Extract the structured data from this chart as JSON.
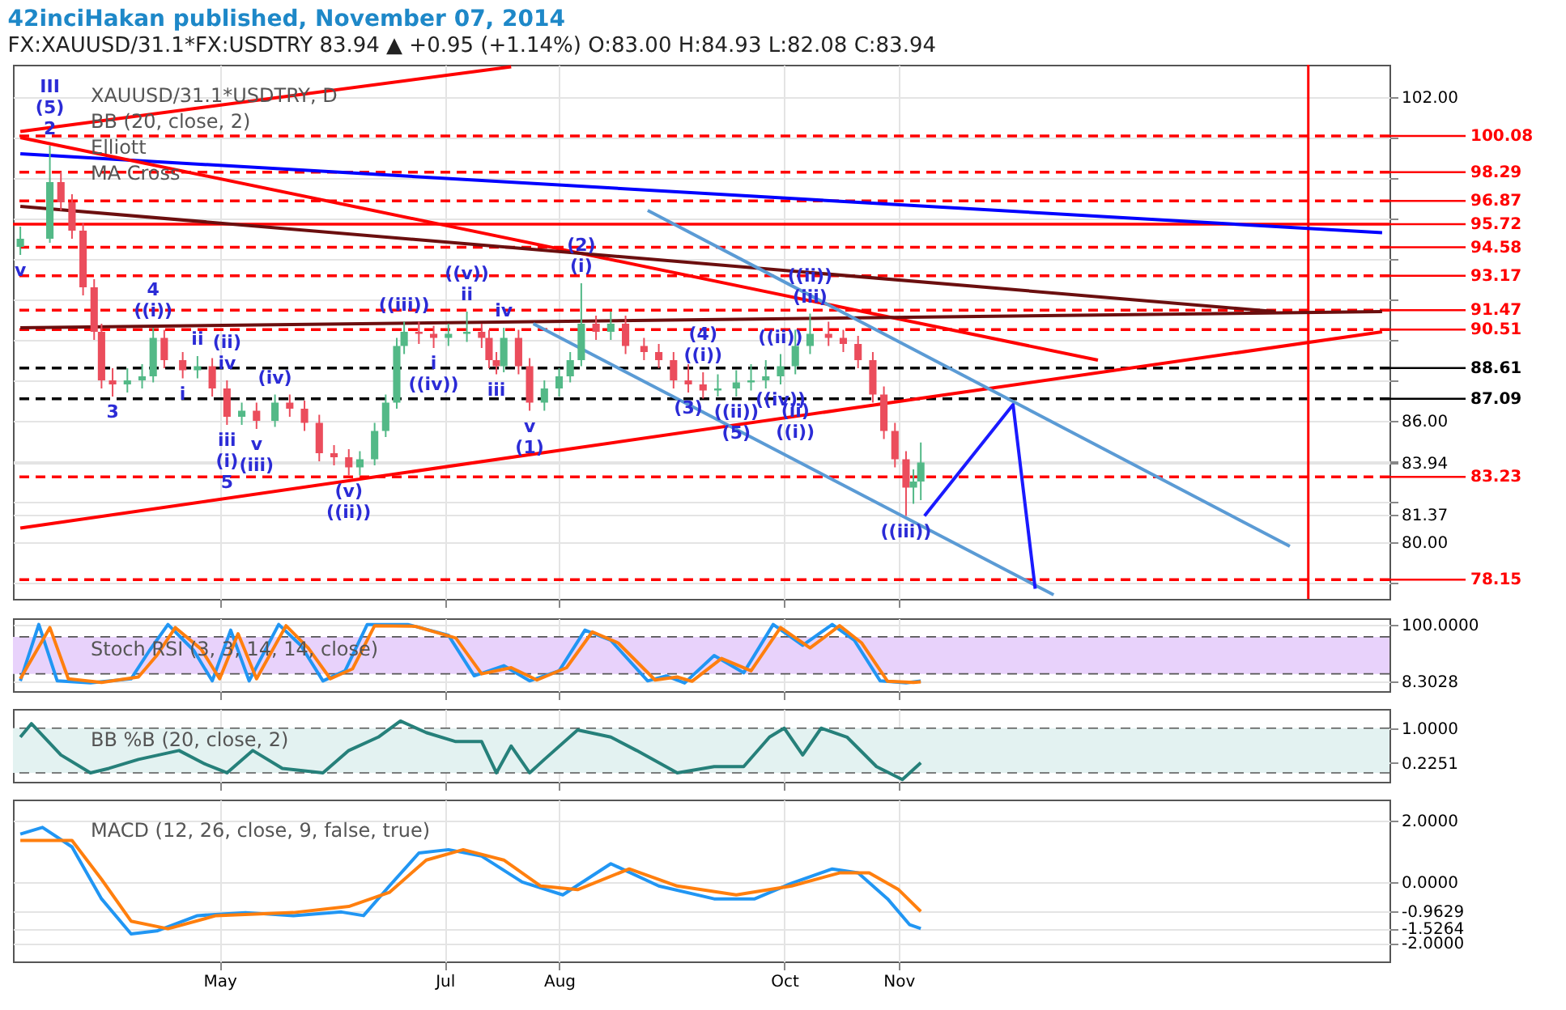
{
  "chart_data": [
    {
      "type": "candlestick",
      "title": "42inciHakan published, November 07, 2014",
      "subtitle": "FX:XAUUSD/31.1*FX:USDTRY  83.94 ▲ +0.95 (+1.14%)  O:83.00  H:84.93  L:82.08  C:83.94",
      "x": [
        "2014-03-08",
        "2014-03-16",
        "2014-03-19",
        "2014-03-22",
        "2014-03-25",
        "2014-03-28",
        "2014-03-30",
        "2014-04-02",
        "2014-04-06",
        "2014-04-10",
        "2014-04-13",
        "2014-04-16",
        "2014-04-21",
        "2014-04-25",
        "2014-04-29",
        "2014-05-03",
        "2014-05-07",
        "2014-05-11",
        "2014-05-16",
        "2014-05-20",
        "2014-05-24",
        "2014-05-28",
        "2014-06-01",
        "2014-06-05",
        "2014-06-08",
        "2014-06-12",
        "2014-06-15",
        "2014-06-18",
        "2014-06-20",
        "2014-06-24",
        "2014-06-28",
        "2014-07-02",
        "2014-07-07",
        "2014-07-11",
        "2014-07-13",
        "2014-07-15",
        "2014-07-17",
        "2014-07-21",
        "2014-07-24",
        "2014-07-28",
        "2014-08-01",
        "2014-08-04",
        "2014-08-07",
        "2014-08-11",
        "2014-08-15",
        "2014-08-19",
        "2014-08-24",
        "2014-08-28",
        "2014-09-01",
        "2014-09-05",
        "2014-09-09",
        "2014-09-13",
        "2014-09-18",
        "2014-09-22",
        "2014-09-26",
        "2014-09-30",
        "2014-10-04",
        "2014-10-08",
        "2014-10-13",
        "2014-10-17",
        "2014-10-21",
        "2014-10-25",
        "2014-10-28",
        "2014-10-31",
        "2014-11-03",
        "2014-11-05",
        "2014-11-07"
      ],
      "ohlc": [
        [
          94.6,
          95.6,
          94.2,
          95.0
        ],
        [
          95.0,
          99.6,
          94.8,
          97.8
        ],
        [
          97.8,
          98.3,
          96.4,
          96.8
        ],
        [
          96.8,
          97.2,
          95.0,
          95.4
        ],
        [
          95.4,
          95.8,
          92.2,
          92.6
        ],
        [
          92.6,
          93.0,
          90.0,
          90.4
        ],
        [
          90.4,
          90.8,
          87.6,
          88.0
        ],
        [
          88.0,
          88.6,
          87.2,
          87.8
        ],
        [
          87.8,
          88.6,
          87.4,
          88.0
        ],
        [
          88.0,
          88.8,
          87.6,
          88.2
        ],
        [
          88.2,
          90.6,
          87.9,
          90.1
        ],
        [
          90.1,
          90.5,
          88.6,
          89.0
        ],
        [
          89.0,
          89.4,
          88.1,
          88.5
        ],
        [
          88.5,
          89.2,
          88.1,
          88.7
        ],
        [
          88.7,
          89.1,
          87.2,
          87.6
        ],
        [
          87.6,
          88.0,
          85.8,
          86.2
        ],
        [
          86.2,
          86.9,
          85.8,
          86.5
        ],
        [
          86.5,
          86.9,
          85.6,
          86.0
        ],
        [
          86.0,
          87.3,
          85.7,
          86.9
        ],
        [
          86.9,
          87.3,
          86.2,
          86.6
        ],
        [
          86.6,
          87.0,
          85.5,
          85.9
        ],
        [
          85.9,
          86.3,
          84.0,
          84.4
        ],
        [
          84.4,
          84.8,
          83.8,
          84.2
        ],
        [
          84.2,
          84.6,
          83.3,
          83.7
        ],
        [
          83.7,
          84.5,
          83.3,
          84.1
        ],
        [
          84.1,
          85.9,
          83.8,
          85.5
        ],
        [
          85.5,
          87.3,
          85.2,
          86.9
        ],
        [
          86.9,
          90.1,
          86.6,
          89.7
        ],
        [
          89.7,
          90.9,
          89.3,
          90.4
        ],
        [
          90.4,
          90.9,
          89.8,
          90.3
        ],
        [
          90.3,
          90.7,
          89.6,
          90.1
        ],
        [
          90.1,
          90.8,
          89.7,
          90.3
        ],
        [
          90.3,
          91.4,
          89.9,
          90.4
        ],
        [
          90.4,
          90.8,
          89.6,
          90.1
        ],
        [
          90.1,
          90.5,
          88.6,
          89.0
        ],
        [
          89.0,
          89.4,
          88.3,
          88.7
        ],
        [
          88.7,
          90.6,
          88.4,
          90.1
        ],
        [
          90.1,
          90.5,
          88.3,
          88.7
        ],
        [
          88.7,
          89.1,
          86.5,
          86.9
        ],
        [
          86.9,
          88.0,
          86.5,
          87.6
        ],
        [
          87.6,
          88.6,
          87.2,
          88.2
        ],
        [
          88.2,
          89.4,
          87.9,
          89.0
        ],
        [
          89.0,
          92.8,
          88.7,
          90.8
        ],
        [
          90.8,
          91.2,
          90.0,
          90.4
        ],
        [
          90.4,
          91.4,
          90.0,
          90.8
        ],
        [
          90.8,
          91.2,
          89.3,
          89.7
        ],
        [
          89.7,
          90.1,
          89.0,
          89.4
        ],
        [
          89.4,
          89.8,
          88.6,
          89.0
        ],
        [
          89.0,
          89.4,
          87.6,
          88.0
        ],
        [
          88.0,
          88.8,
          87.4,
          87.8
        ],
        [
          87.8,
          88.4,
          87.1,
          87.5
        ],
        [
          87.5,
          88.3,
          87.2,
          87.6
        ],
        [
          87.6,
          88.5,
          87.2,
          87.9
        ],
        [
          87.9,
          88.8,
          87.5,
          88.0
        ],
        [
          88.0,
          89.0,
          87.6,
          88.2
        ],
        [
          88.2,
          89.3,
          87.8,
          88.7
        ],
        [
          88.7,
          90.5,
          88.3,
          89.7
        ],
        [
          89.7,
          91.3,
          89.3,
          90.3
        ],
        [
          90.3,
          90.9,
          89.7,
          90.1
        ],
        [
          90.1,
          90.5,
          89.4,
          89.8
        ],
        [
          89.8,
          90.2,
          88.6,
          89.0
        ],
        [
          89.0,
          89.4,
          86.9,
          87.3
        ],
        [
          87.3,
          87.7,
          85.1,
          85.5
        ],
        [
          85.5,
          85.9,
          83.7,
          84.1
        ],
        [
          84.1,
          84.5,
          81.3,
          82.7
        ],
        [
          82.7,
          83.6,
          81.9,
          83.0
        ],
        [
          83.0,
          84.93,
          82.08,
          83.94
        ]
      ],
      "colors": [
        "#53b987",
        "#53b987",
        "#eb4d5c",
        "#eb4d5c",
        "#eb4d5c",
        "#eb4d5c",
        "#eb4d5c",
        "#eb4d5c",
        "#53b987",
        "#53b987",
        "#53b987",
        "#eb4d5c",
        "#eb4d5c",
        "#53b987",
        "#eb4d5c",
        "#eb4d5c",
        "#53b987",
        "#eb4d5c",
        "#53b987",
        "#eb4d5c",
        "#eb4d5c",
        "#eb4d5c",
        "#eb4d5c",
        "#eb4d5c",
        "#53b987",
        "#53b987",
        "#53b987",
        "#53b987",
        "#53b987",
        "#eb4d5c",
        "#eb4d5c",
        "#53b987",
        "#53b987",
        "#eb4d5c",
        "#eb4d5c",
        "#eb4d5c",
        "#53b987",
        "#eb4d5c",
        "#eb4d5c",
        "#53b987",
        "#53b987",
        "#53b987",
        "#53b987",
        "#eb4d5c",
        "#53b987",
        "#eb4d5c",
        "#eb4d5c",
        "#eb4d5c",
        "#eb4d5c",
        "#eb4d5c",
        "#eb4d5c",
        "#53b987",
        "#53b987",
        "#53b987",
        "#53b987",
        "#53b987",
        "#53b987",
        "#53b987",
        "#eb4d5c",
        "#eb4d5c",
        "#eb4d5c",
        "#eb4d5c",
        "#eb4d5c",
        "#eb4d5c",
        "#eb4d5c",
        "#53b987",
        "#53b987"
      ],
      "series": [
        {
          "type": "line",
          "color": "#ff0000",
          "x": [
            "2014-03-08",
            "2014-07-19"
          ],
          "values": [
            100.3,
            103.5
          ]
        },
        {
          "type": "line",
          "color": "#0000ff",
          "x": [
            "2014-03-08",
            "2015-03-12"
          ],
          "values": [
            99.2,
            95.3
          ]
        },
        {
          "type": "line",
          "color": "#ff0000",
          "x": [
            "2014-03-08",
            "2014-12-25"
          ],
          "values": [
            100.0,
            89.0
          ]
        },
        {
          "type": "line",
          "color": "#6b0f0f",
          "x": [
            "2014-03-08",
            "2015-02-11"
          ],
          "values": [
            96.6,
            91.4
          ]
        },
        {
          "type": "line",
          "color": "#6b0f0f",
          "x": [
            "2014-03-08",
            "2015-03-12"
          ],
          "values": [
            90.6,
            91.4
          ]
        },
        {
          "type": "line",
          "color": "#ff0000",
          "x": [
            "2014-03-08",
            "2015-03-12"
          ],
          "values": [
            80.7,
            90.4
          ]
        },
        {
          "type": "line",
          "color": "#5b9bd5",
          "x": [
            "2014-08-25",
            "2015-02-15"
          ],
          "values": [
            96.4,
            79.8
          ]
        },
        {
          "type": "line",
          "color": "#5b9bd5",
          "x": [
            "2014-07-25",
            "2014-12-13"
          ],
          "values": [
            90.8,
            77.4
          ]
        },
        {
          "type": "line",
          "color": "#1a1aff",
          "x": [
            "2014-11-08",
            "2014-12-02",
            "2014-12-08"
          ],
          "values": [
            81.3,
            86.8,
            77.7
          ]
        }
      ],
      "ref_lines": [
        {
          "axis": "y",
          "value": 100.08,
          "label": "100.08",
          "color": "#ff0000",
          "line_style": "dashed"
        },
        {
          "axis": "y",
          "value": 98.29,
          "label": "98.29",
          "color": "#ff0000",
          "line_style": "dashed"
        },
        {
          "axis": "y",
          "value": 96.87,
          "label": "96.87",
          "color": "#ff0000",
          "line_style": "dashed"
        },
        {
          "axis": "y",
          "value": 95.72,
          "label": "95.72",
          "color": "#ff0000",
          "line_style": "solid"
        },
        {
          "axis": "y",
          "value": 94.58,
          "label": "94.58",
          "color": "#ff0000",
          "line_style": "dashed"
        },
        {
          "axis": "y",
          "value": 93.17,
          "label": "93.17",
          "color": "#ff0000",
          "line_style": "dashed"
        },
        {
          "axis": "y",
          "value": 91.47,
          "label": "91.47",
          "color": "#ff0000",
          "line_style": "dashed"
        },
        {
          "axis": "y",
          "value": 90.51,
          "label": "90.51",
          "color": "#ff0000",
          "line_style": "dashed"
        },
        {
          "axis": "y",
          "value": 88.61,
          "label": "88.61",
          "color": "#000000",
          "line_style": "dashed"
        },
        {
          "axis": "y",
          "value": 87.09,
          "label": "87.09",
          "color": "#000000",
          "line_style": "dashed"
        },
        {
          "axis": "y",
          "value": 83.23,
          "label": "83.23",
          "color": "#ff0000",
          "line_style": "dashed"
        },
        {
          "axis": "y",
          "value": 78.15,
          "label": "78.15",
          "color": "#ff0000",
          "line_style": "dashed"
        },
        {
          "axis": "x",
          "value": "2015-02-20",
          "label": null,
          "color": "#ff0000",
          "line_style": "solid"
        }
      ],
      "annotations": [
        "XAUUSD/31.1*USDTRY, D",
        "BB (20, close, 2)",
        "Elliott",
        "MA Cross",
        {
          "text": "2",
          "x": "2014-03-16",
          "y": 99.6
        },
        {
          "text": "(5)",
          "x": "2014-03-16",
          "y": 99.6
        },
        {
          "text": "III",
          "x": "2014-03-16",
          "y": 99.6
        },
        {
          "text": "v",
          "x": "2014-03-08",
          "y": 94.2
        },
        {
          "text": "((i))",
          "x": "2014-04-13",
          "y": 90.6
        },
        {
          "text": "4",
          "x": "2014-04-13",
          "y": 90.6
        },
        {
          "text": "ii",
          "x": "2014-04-25",
          "y": 89.2
        },
        {
          "text": "iv",
          "x": "2014-05-03",
          "y": 88.0
        },
        {
          "text": "(ii)",
          "x": "2014-05-03",
          "y": 88.0
        },
        {
          "text": "(iv)",
          "x": "2014-05-16",
          "y": 87.3
        },
        {
          "text": "3",
          "x": "2014-04-02",
          "y": 87.2
        },
        {
          "text": "i",
          "x": "2014-04-21",
          "y": 88.1
        },
        {
          "text": "iii",
          "x": "2014-05-03",
          "y": 85.8
        },
        {
          "text": "(i)",
          "x": "2014-05-03",
          "y": 85.8
        },
        {
          "text": "5",
          "x": "2014-05-03",
          "y": 85.8
        },
        {
          "text": "v",
          "x": "2014-05-11",
          "y": 85.6
        },
        {
          "text": "(iii)",
          "x": "2014-05-11",
          "y": 85.6
        },
        {
          "text": "(v)",
          "x": "2014-06-05",
          "y": 83.3
        },
        {
          "text": "((ii))",
          "x": "2014-06-05",
          "y": 83.3
        },
        {
          "text": "((iii))",
          "x": "2014-06-20",
          "y": 90.9
        },
        {
          "text": "ii",
          "x": "2014-07-07",
          "y": 91.4
        },
        {
          "text": "((v))",
          "x": "2014-07-07",
          "y": 91.4
        },
        {
          "text": "iv",
          "x": "2014-07-17",
          "y": 90.6
        },
        {
          "text": "i",
          "x": "2014-06-28",
          "y": 89.6
        },
        {
          "text": "((iv))",
          "x": "2014-06-28",
          "y": 89.6
        },
        {
          "text": "iii",
          "x": "2014-07-15",
          "y": 88.3
        },
        {
          "text": "v",
          "x": "2014-07-24",
          "y": 86.5
        },
        {
          "text": "(1)",
          "x": "2014-07-24",
          "y": 86.5
        },
        {
          "text": "(i)",
          "x": "2014-08-07",
          "y": 92.8
        },
        {
          "text": "(2)",
          "x": "2014-08-07",
          "y": 92.8
        },
        {
          "text": "((i))",
          "x": "2014-09-09",
          "y": 88.4
        },
        {
          "text": "(4)",
          "x": "2014-09-09",
          "y": 88.4
        },
        {
          "text": "((ii))",
          "x": "2014-09-30",
          "y": 89.3
        },
        {
          "text": "((iv))",
          "x": "2014-09-30",
          "y": 87.8
        },
        {
          "text": "(iii)",
          "x": "2014-10-08",
          "y": 91.3
        },
        {
          "text": "((ii))",
          "x": "2014-10-08",
          "y": 91.3
        },
        {
          "text": "(3)",
          "x": "2014-09-05",
          "y": 87.4
        },
        {
          "text": "((ii))",
          "x": "2014-09-18",
          "y": 87.2
        },
        {
          "text": "(5)",
          "x": "2014-09-18",
          "y": 87.2
        },
        {
          "text": "(ii)",
          "x": "2014-10-04",
          "y": 88.3
        },
        {
          "text": "((i))",
          "x": "2014-10-04",
          "y": 88.3
        },
        {
          "text": "((iii))",
          "x": "2014-11-03",
          "y": 81.3
        }
      ],
      "xlim": [
        "2014-03-06",
        "2015-03-14"
      ],
      "xticks": [
        {
          "value": "2014-05-01",
          "label": null
        },
        {
          "value": "2014-07-01",
          "label": null
        },
        {
          "value": "2014-08-01",
          "label": null
        },
        {
          "value": "2014-10-01",
          "label": null
        },
        {
          "value": "2014-11-01",
          "label": null
        }
      ],
      "ylim": [
        77.2,
        103.6
      ],
      "yticks": [
        {
          "value": 78,
          "label": null
        },
        {
          "value": 80,
          "label": "80.00"
        },
        {
          "value": 81.37,
          "label": "81.37"
        },
        {
          "value": 82,
          "label": null
        },
        {
          "value": 83.94,
          "label": "83.94"
        },
        {
          "value": 84,
          "label": null
        },
        {
          "value": 86,
          "label": "86.00"
        },
        {
          "value": 88,
          "label": null
        },
        {
          "value": 90,
          "label": null
        },
        {
          "value": 92,
          "label": null
        },
        {
          "value": 94,
          "label": null
        },
        {
          "value": 96,
          "label": null
        },
        {
          "value": 98,
          "label": null
        },
        {
          "value": 100,
          "label": null
        },
        {
          "value": 102,
          "label": "102.00"
        }
      ],
      "tick_labels": "y",
      "grid": true,
      "marker": "none"
    },
    {
      "type": "line",
      "annotations": [
        "Stoch RSI (3, 3, 14, 14, close)"
      ],
      "series": [
        {
          "color": "#2196f3",
          "x": [
            "2014-03-08",
            "2014-03-13",
            "2014-03-18",
            "2014-03-27",
            "2014-04-07",
            "2014-04-12",
            "2014-04-17",
            "2014-04-24",
            "2014-04-29",
            "2014-05-04",
            "2014-05-09",
            "2014-05-17",
            "2014-05-23",
            "2014-05-29",
            "2014-06-04",
            "2014-06-10",
            "2014-06-21",
            "2014-07-02",
            "2014-07-09",
            "2014-07-17",
            "2014-07-24",
            "2014-08-01",
            "2014-08-08",
            "2014-08-15",
            "2014-08-25",
            "2014-08-30",
            "2014-09-04",
            "2014-09-12",
            "2014-09-20",
            "2014-09-28",
            "2014-10-06",
            "2014-10-14",
            "2014-10-20",
            "2014-10-27",
            "2014-11-03",
            "2014-11-07"
          ],
          "values": [
            8.6,
            100,
            8.6,
            5.3,
            11.9,
            57.9,
            100,
            57.9,
            8.6,
            90.8,
            8.6,
            100,
            66.1,
            8.6,
            25,
            100,
            100,
            82.6,
            16.8,
            33.2,
            8.6,
            25,
            90.8,
            74.3,
            8.6,
            16.8,
            5.3,
            49.7,
            21.7,
            100,
            66.1,
            100,
            74.3,
            8.6,
            5.3,
            8.3028
          ]
        },
        {
          "color": "#ff7f0e",
          "x": [
            "2014-03-08",
            "2014-03-16",
            "2014-03-21",
            "2014-03-30",
            "2014-04-09",
            "2014-04-14",
            "2014-04-19",
            "2014-04-26",
            "2014-05-01",
            "2014-05-06",
            "2014-05-11",
            "2014-05-19",
            "2014-05-25",
            "2014-05-31",
            "2014-06-06",
            "2014-06-12",
            "2014-06-23",
            "2014-07-04",
            "2014-07-11",
            "2014-07-19",
            "2014-07-26",
            "2014-08-03",
            "2014-08-10",
            "2014-08-17",
            "2014-08-27",
            "2014-09-02",
            "2014-09-06",
            "2014-09-14",
            "2014-09-22",
            "2014-09-30",
            "2014-10-08",
            "2014-10-16",
            "2014-10-22",
            "2014-10-29",
            "2014-11-05",
            "2014-11-07"
          ],
          "values": [
            12,
            95,
            12,
            6,
            15,
            50,
            95,
            60,
            12,
            85,
            12,
            98,
            62,
            12,
            28,
            98,
            97,
            78,
            20,
            30,
            10,
            30,
            88,
            70,
            10,
            15,
            8,
            45,
            25,
            95,
            62,
            98,
            70,
            8,
            6,
            7
          ]
        }
      ],
      "bands": [
        {
          "axis": "y",
          "from": 20,
          "to": 80,
          "color": "#e8d2fb"
        }
      ],
      "ref_lines": [
        {
          "axis": "y",
          "value": 20,
          "label": null,
          "color": "#555555",
          "line_style": "dashed"
        },
        {
          "axis": "y",
          "value": 80,
          "label": null,
          "color": "#555555",
          "line_style": "dashed"
        }
      ],
      "xlim": [
        "2014-03-06",
        "2015-03-14"
      ],
      "xticks": [
        {
          "value": "2014-05-01",
          "label": null
        },
        {
          "value": "2014-07-01",
          "label": null
        },
        {
          "value": "2014-08-01",
          "label": null
        },
        {
          "value": "2014-10-01",
          "label": null
        },
        {
          "value": "2014-11-01",
          "label": null
        }
      ],
      "ylim": [
        -8,
        110
      ],
      "yticks": [
        {
          "value": 8.3028,
          "label": "8.3028"
        },
        {
          "value": 100,
          "label": "100.0000"
        }
      ],
      "tick_labels": "y",
      "grid": true,
      "marker": "none"
    },
    {
      "type": "line",
      "annotations": [
        "BB %B (20, close, 2)"
      ],
      "series": [
        {
          "color": "#26807a",
          "x": [
            "2014-03-08",
            "2014-03-11",
            "2014-03-19",
            "2014-03-27",
            "2014-04-01",
            "2014-04-09",
            "2014-04-20",
            "2014-04-27",
            "2014-05-03",
            "2014-05-10",
            "2014-05-18",
            "2014-05-29",
            "2014-06-05",
            "2014-06-13",
            "2014-06-19",
            "2014-06-26",
            "2014-07-04",
            "2014-07-11",
            "2014-07-15",
            "2014-07-19",
            "2014-07-24",
            "2014-07-28",
            "2014-08-06",
            "2014-08-15",
            "2014-08-22",
            "2014-09-02",
            "2014-09-12",
            "2014-09-20",
            "2014-09-27",
            "2014-10-01",
            "2014-10-06",
            "2014-10-11",
            "2014-10-18",
            "2014-10-26",
            "2014-11-02",
            "2014-11-07"
          ],
          "values": [
            0.8,
            1.1,
            0.4,
            0.0,
            0.1,
            0.3,
            0.5,
            0.2,
            0.0,
            0.5,
            0.1,
            0.0,
            0.5,
            0.8,
            1.16,
            0.9,
            0.7,
            0.7,
            0.0,
            0.6,
            0.0,
            0.3,
            0.96,
            0.8,
            0.5,
            0.0,
            0.14,
            0.14,
            0.8,
            1.0,
            0.4,
            1.0,
            0.8,
            0.14,
            -0.15,
            0.2251
          ]
        }
      ],
      "bands": [
        {
          "axis": "y",
          "from": 0,
          "to": 1,
          "color": "#e3f2f1"
        }
      ],
      "ref_lines": [
        {
          "axis": "y",
          "value": 0,
          "label": null,
          "color": "#555555",
          "line_style": "dashed"
        },
        {
          "axis": "y",
          "value": 1,
          "label": null,
          "color": "#555555",
          "line_style": "dashed"
        }
      ],
      "xlim": [
        "2014-03-06",
        "2015-03-14"
      ],
      "xticks": [
        {
          "value": "2014-05-01",
          "label": null
        },
        {
          "value": "2014-07-01",
          "label": null
        },
        {
          "value": "2014-08-01",
          "label": null
        },
        {
          "value": "2014-10-01",
          "label": null
        },
        {
          "value": "2014-11-01",
          "label": null
        }
      ],
      "ylim": [
        -0.2,
        1.43
      ],
      "yticks": [
        {
          "value": 0.2251,
          "label": "0.2251"
        },
        {
          "value": 1,
          "label": "1.0000"
        }
      ],
      "tick_labels": "y",
      "grid": true,
      "marker": "none"
    },
    {
      "type": "line",
      "annotations": [
        "MACD (12, 26, close, 9, false, true)"
      ],
      "series": [
        {
          "color": "#2196f3",
          "x": [
            "2014-03-08",
            "2014-03-14",
            "2014-03-22",
            "2014-03-30",
            "2014-04-07",
            "2014-04-14",
            "2014-04-25",
            "2014-05-08",
            "2014-05-21",
            "2014-06-03",
            "2014-06-09",
            "2014-06-16",
            "2014-06-24",
            "2014-07-02",
            "2014-07-11",
            "2014-07-22",
            "2014-08-02",
            "2014-08-15",
            "2014-08-28",
            "2014-09-12",
            "2014-09-23",
            "2014-10-03",
            "2014-10-14",
            "2014-10-21",
            "2014-10-29",
            "2014-11-04",
            "2014-11-07"
          ],
          "values": [
            1.57,
            1.79,
            1.15,
            -0.55,
            -1.7,
            -1.6,
            -1.1,
            -1.0,
            -1.1,
            -0.98,
            -1.1,
            -0.13,
            0.95,
            1.06,
            0.85,
            0,
            -0.42,
            0.6,
            -0.13,
            -0.55,
            -0.55,
            -0.04,
            0.43,
            0.3,
            -0.55,
            -1.4,
            -1.5264
          ]
        },
        {
          "color": "#ff7f0e",
          "x": [
            "2014-03-08",
            "2014-03-22",
            "2014-03-30",
            "2014-04-07",
            "2014-04-17",
            "2014-04-30",
            "2014-05-21",
            "2014-06-05",
            "2014-06-16",
            "2014-06-26",
            "2014-07-06",
            "2014-07-17",
            "2014-07-27",
            "2014-08-06",
            "2014-08-20",
            "2014-09-02",
            "2014-09-18",
            "2014-10-03",
            "2014-10-16",
            "2014-10-24",
            "2014-11-01",
            "2014-11-07"
          ],
          "values": [
            1.36,
            1.36,
            0.09,
            -1.28,
            -1.53,
            -1.1,
            -1.0,
            -0.8,
            -0.34,
            0.72,
            1.06,
            0.72,
            -0.13,
            -0.25,
            0.43,
            -0.13,
            -0.42,
            -0.13,
            0.3,
            0.3,
            -0.25,
            -0.9629
          ]
        }
      ],
      "xlim": [
        "2014-03-06",
        "2015-03-14"
      ],
      "xticks": [
        {
          "value": "2014-05-01",
          "label": "May"
        },
        {
          "value": "2014-07-01",
          "label": "Jul"
        },
        {
          "value": "2014-08-01",
          "label": "Aug"
        },
        {
          "value": "2014-10-01",
          "label": "Oct"
        },
        {
          "value": "2014-11-01",
          "label": "Nov"
        }
      ],
      "ylim": [
        -2.6,
        2.7
      ],
      "yticks": [
        {
          "value": -2,
          "label": "-2.0000"
        },
        {
          "value": -1.5264,
          "label": "-1.5264"
        },
        {
          "value": -0.9629,
          "label": "-0.9629"
        },
        {
          "value": 0,
          "label": "0.0000"
        },
        {
          "value": 2,
          "label": "2.0000"
        }
      ],
      "grid": true,
      "marker": "none"
    }
  ]
}
